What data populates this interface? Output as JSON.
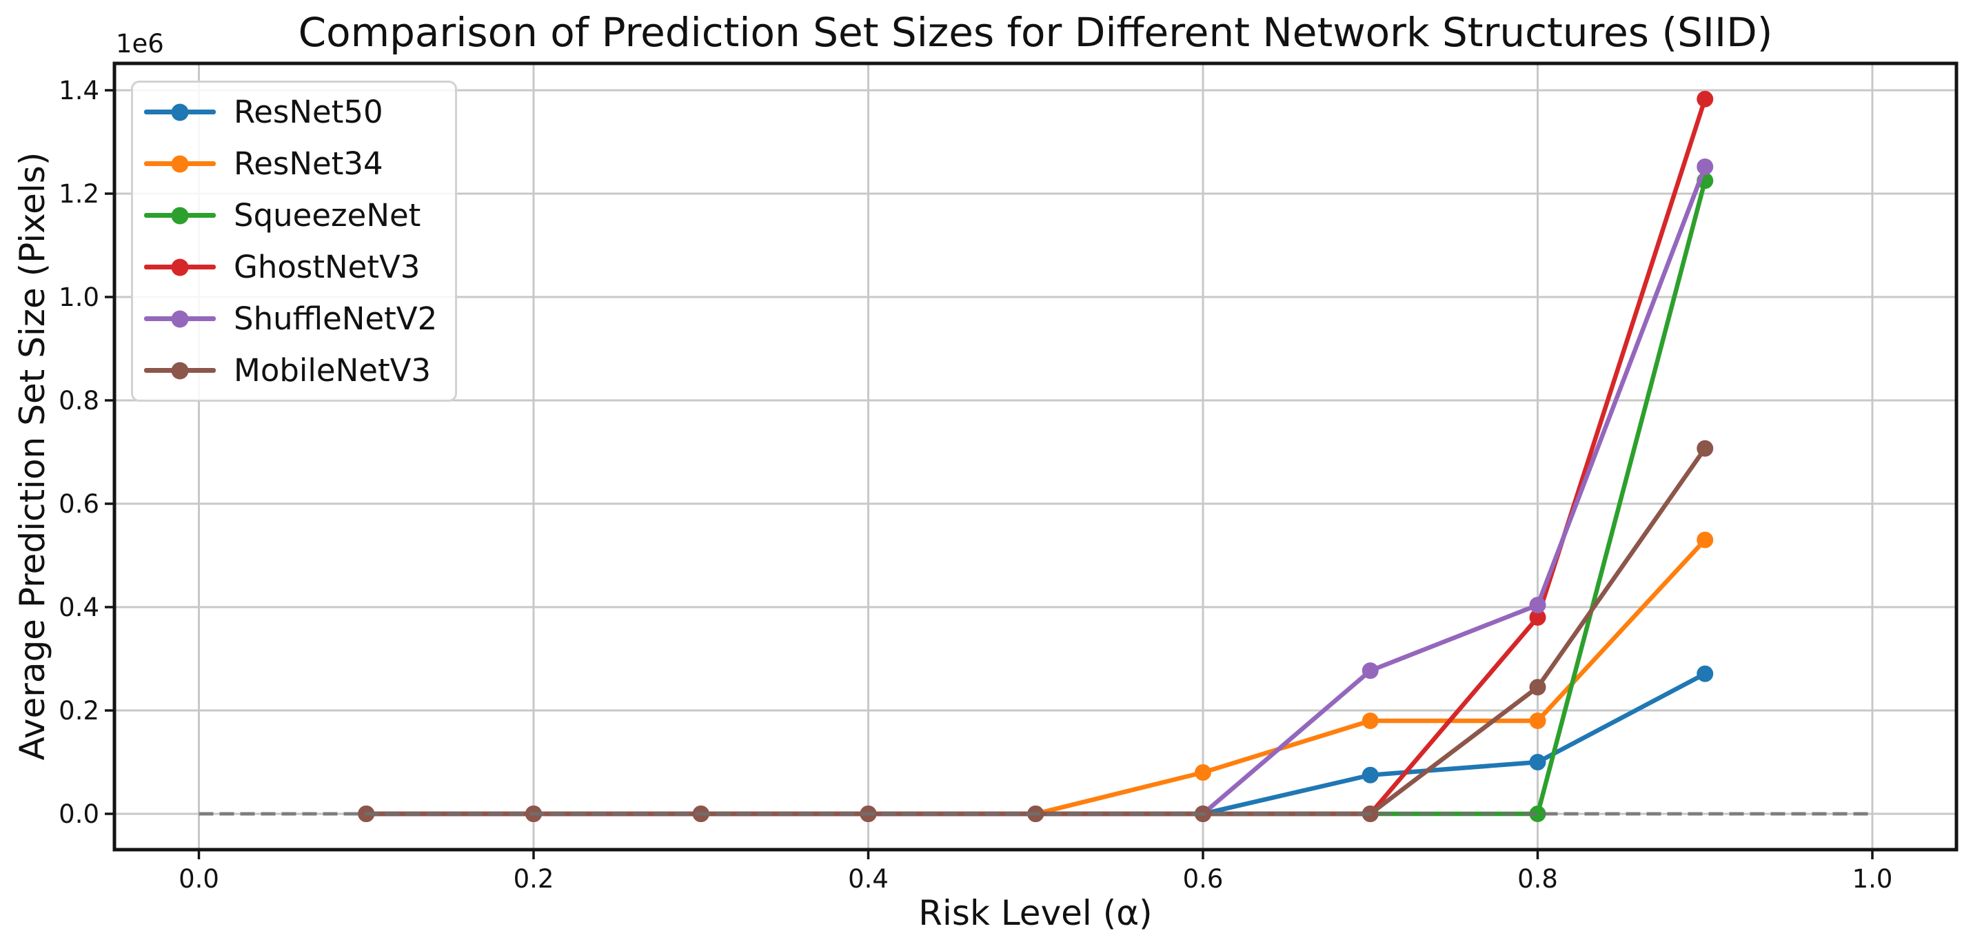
{
  "chart_data": {
    "type": "line",
    "title": "Comparison of Prediction Set Sizes for Different Network Structures (SIID)",
    "xlabel": "Risk Level (α)",
    "ylabel": "Average Prediction Set Size (Pixels)",
    "y_offset_label": "1e6",
    "x": [
      0.1,
      0.2,
      0.3,
      0.4,
      0.5,
      0.6,
      0.7,
      0.8,
      0.9
    ],
    "series": [
      {
        "name": "ResNet50",
        "color": "#1f77b4",
        "values": [
          0,
          0,
          0,
          0,
          0,
          0,
          75000,
          100000,
          271000
        ]
      },
      {
        "name": "ResNet34",
        "color": "#ff7f0e",
        "values": [
          0,
          0,
          0,
          0,
          0,
          80000,
          180000,
          180000,
          530000
        ]
      },
      {
        "name": "SqueezeNet",
        "color": "#2ca02c",
        "values": [
          0,
          0,
          0,
          0,
          0,
          0,
          0,
          0,
          1225000
        ]
      },
      {
        "name": "GhostNetV3",
        "color": "#d62728",
        "values": [
          0,
          0,
          0,
          0,
          0,
          0,
          0,
          380000,
          1383000
        ]
      },
      {
        "name": "ShuffleNetV2",
        "color": "#9467bd",
        "values": [
          0,
          0,
          0,
          0,
          0,
          0,
          277000,
          404000,
          1252000
        ]
      },
      {
        "name": "MobileNetV3",
        "color": "#8c564b",
        "values": [
          0,
          0,
          0,
          0,
          0,
          0,
          0,
          245000,
          707000
        ]
      }
    ],
    "reference_line": {
      "y": 0,
      "x_start": 0.0,
      "x_end": 1.0,
      "style": "dashed",
      "color": "#6f6f6f"
    },
    "x_ticks": [
      0.0,
      0.2,
      0.4,
      0.6,
      0.8,
      1.0
    ],
    "x_tick_labels": [
      "0.0",
      "0.2",
      "0.4",
      "0.6",
      "0.8",
      "1.0"
    ],
    "y_ticks": [
      0,
      200000,
      400000,
      600000,
      800000,
      1000000,
      1200000,
      1400000
    ],
    "y_tick_labels": [
      "0.0",
      "0.2",
      "0.4",
      "0.6",
      "0.8",
      "1.0",
      "1.2",
      "1.4"
    ],
    "xlim": [
      -0.0507,
      1.0507
    ],
    "ylim": [
      -69300,
      1452000
    ],
    "grid": true,
    "grid_color": "#c8c8c8",
    "spine_color": "#141414",
    "legend_position": "upper left"
  }
}
